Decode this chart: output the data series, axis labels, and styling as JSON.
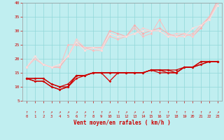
{
  "xlabel": "Vent moyen/en rafales ( km/h )",
  "bg_color": "#c0eef0",
  "grid_color": "#90d8d8",
  "x_min": 0,
  "x_max": 23,
  "y_min": 5,
  "y_max": 40,
  "x_ticks": [
    0,
    1,
    2,
    3,
    4,
    5,
    6,
    7,
    8,
    9,
    10,
    11,
    12,
    13,
    14,
    15,
    16,
    17,
    18,
    19,
    20,
    21,
    22,
    23
  ],
  "y_ticks": [
    5,
    10,
    15,
    20,
    25,
    30,
    35,
    40
  ],
  "series_light": [
    [
      17,
      20,
      18,
      17,
      17,
      21,
      26,
      24,
      24,
      24,
      30,
      29,
      28,
      32,
      29,
      30,
      31,
      29,
      28,
      29,
      28,
      31,
      35,
      41
    ],
    [
      17,
      20,
      18,
      17,
      17,
      25,
      25,
      24,
      23,
      23,
      28,
      27,
      28,
      31,
      28,
      29,
      34,
      29,
      28,
      28,
      29,
      32,
      35,
      40
    ],
    [
      17,
      20,
      18,
      17,
      18,
      21,
      27,
      24,
      24,
      24,
      29,
      28,
      28,
      29,
      31,
      30,
      30,
      28,
      29,
      29,
      28,
      32,
      34,
      40
    ],
    [
      17,
      21,
      18,
      17,
      18,
      21,
      26,
      23,
      24,
      23,
      29,
      28,
      28,
      29,
      30,
      30,
      30,
      28,
      28,
      28,
      31,
      32,
      34,
      39
    ]
  ],
  "series_dark": [
    [
      13,
      12,
      12,
      10,
      9,
      10,
      13,
      14,
      15,
      15,
      12,
      15,
      15,
      15,
      15,
      16,
      16,
      15,
      15,
      17,
      17,
      19,
      19,
      19
    ],
    [
      13,
      12,
      12,
      10,
      9,
      10,
      14,
      14,
      15,
      15,
      15,
      15,
      15,
      15,
      15,
      16,
      15,
      15,
      15,
      17,
      17,
      18,
      19,
      19
    ],
    [
      13,
      13,
      13,
      11,
      10,
      10,
      14,
      14,
      15,
      15,
      15,
      15,
      15,
      15,
      15,
      16,
      16,
      16,
      15,
      17,
      17,
      18,
      19,
      19
    ],
    [
      13,
      13,
      13,
      11,
      10,
      11,
      14,
      14,
      15,
      15,
      15,
      15,
      15,
      15,
      15,
      16,
      16,
      16,
      16,
      17,
      17,
      19,
      19,
      19
    ]
  ],
  "light_colors": [
    "#ffaaaa",
    "#ffbbbb",
    "#ffcccc",
    "#ffdddd"
  ],
  "dark_colors": [
    "#dd0000",
    "#cc0000",
    "#cc0000",
    "#cc0000"
  ],
  "arrow_chars": [
    "↑",
    "↑",
    "↑",
    "↗",
    "↗",
    "↗",
    "↗",
    "↗",
    "↑",
    "↑",
    "↗",
    "↑",
    "↗",
    "↗",
    "↗",
    "↑",
    "↑",
    "↑",
    "↑",
    "↑",
    "↑",
    "↑",
    "↗",
    "↗"
  ]
}
